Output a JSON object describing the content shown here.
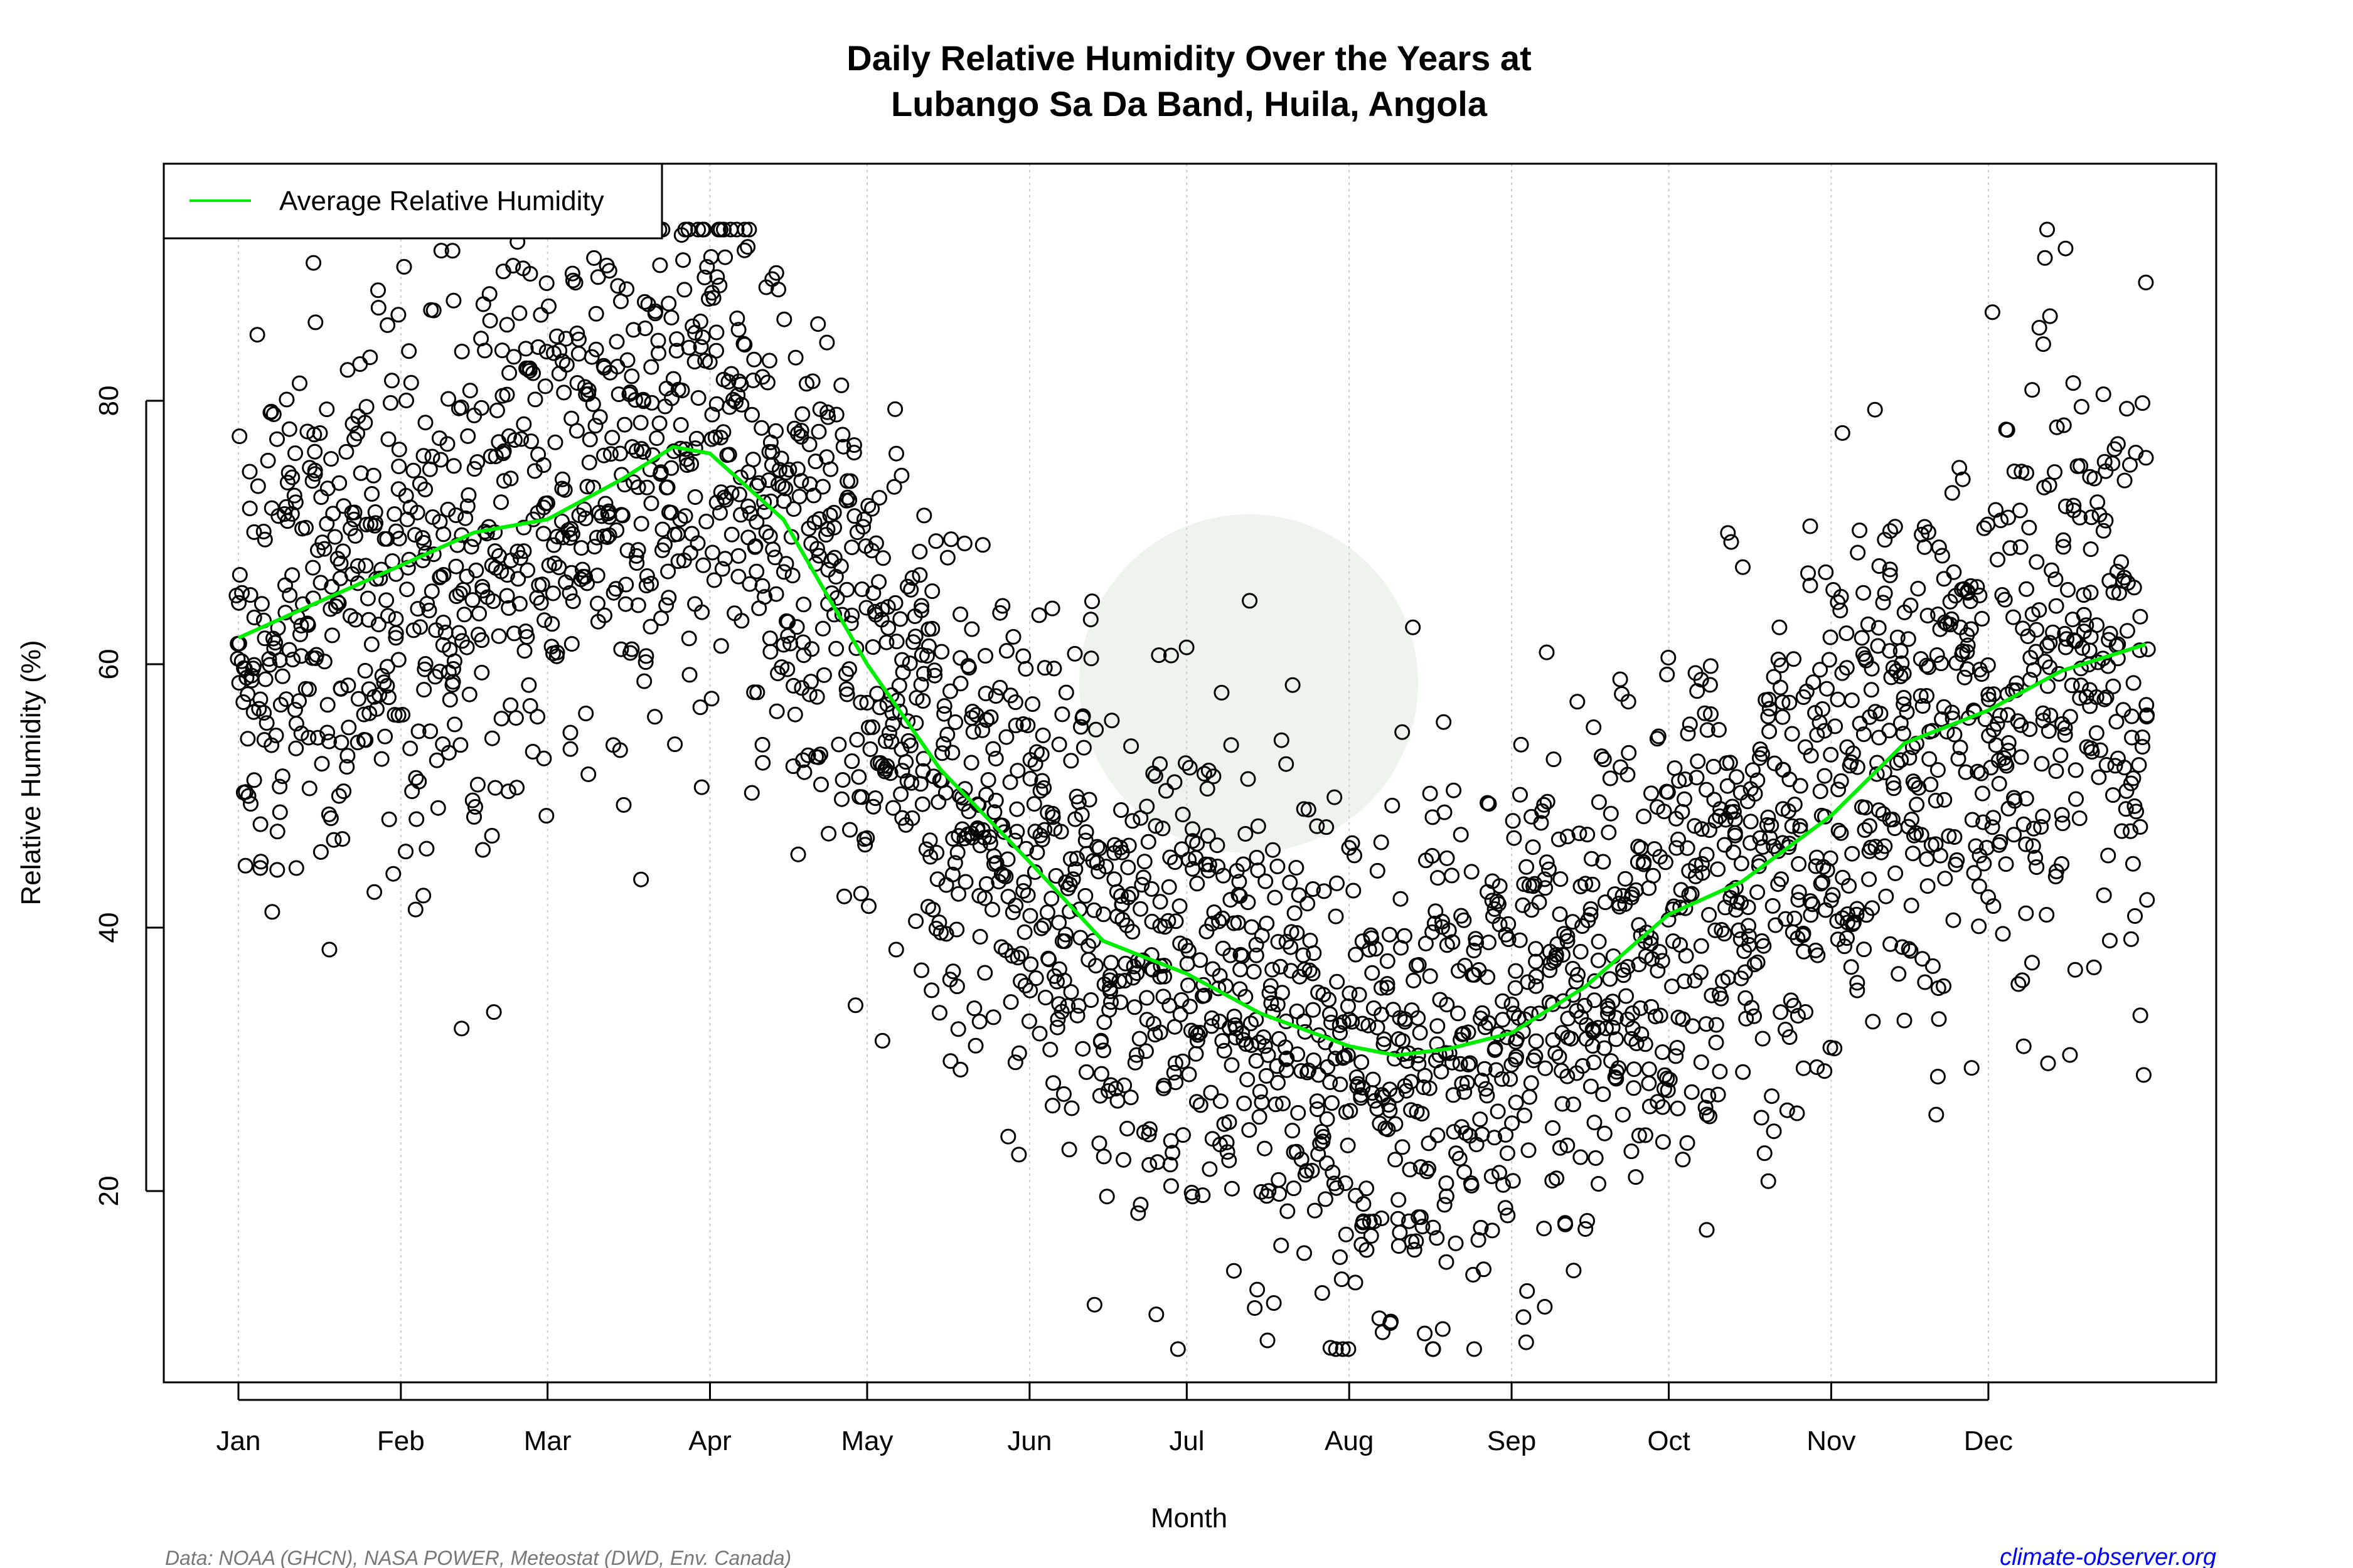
{
  "chart_data": {
    "type": "scatter",
    "title_line1": "Daily Relative Humidity Over the Years at",
    "title_line2": "Lubango Sa Da Band, Huila, Angola",
    "xlabel": "Month",
    "ylabel": "Relative Humidity  (%)",
    "x_ticks": [
      "Jan",
      "Feb",
      "Mar",
      "Apr",
      "May",
      "Jun",
      "Jul",
      "Aug",
      "Sep",
      "Oct",
      "Nov",
      "Dec"
    ],
    "x_tick_days": [
      1,
      32,
      60,
      91,
      121,
      152,
      182,
      213,
      244,
      274,
      305,
      335
    ],
    "y_ticks": [
      20,
      40,
      60,
      80
    ],
    "xlim_day_of_year": [
      1,
      365
    ],
    "ylim": [
      5,
      95
    ],
    "grid": "vertical dotted at month starts",
    "legend": {
      "placement": "top-left",
      "entries": [
        "Average Relative Humidity"
      ]
    },
    "average_series": {
      "name": "Average Relative Humidity",
      "color": "#00ee00",
      "day_of_year": [
        1,
        15,
        32,
        46,
        60,
        74,
        84,
        91,
        105,
        121,
        135,
        152,
        166,
        182,
        196,
        213,
        222,
        232,
        244,
        258,
        274,
        288,
        305,
        319,
        335,
        349,
        365
      ],
      "values": [
        62,
        64.5,
        67.5,
        70,
        71,
        74,
        76.5,
        76,
        71,
        60,
        52,
        45,
        39,
        36.5,
        33.5,
        31,
        30.3,
        30.8,
        32,
        35.5,
        41,
        43.5,
        48.5,
        54,
        56.5,
        59.5,
        61.5
      ]
    },
    "points_style": {
      "marker": "open-circle",
      "color": "#000000"
    }
  },
  "footer": {
    "source": "Data: NOAA (GHCN), NASA POWER, Meteostat (DWD, Env. Canada)",
    "site": "climate-observer.org",
    "source_color": "#777777",
    "site_color": "#0000ff"
  }
}
